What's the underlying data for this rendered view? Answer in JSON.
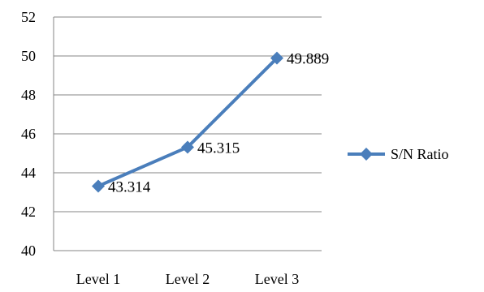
{
  "chart_data": {
    "type": "line",
    "title": "",
    "xlabel": "",
    "ylabel": "",
    "categories": [
      "Level 1",
      "Level 2",
      "Level 3"
    ],
    "series": [
      {
        "name": "S/N Ratio",
        "values": [
          43.314,
          45.315,
          49.889
        ],
        "data_labels": [
          "43.314",
          "45.315",
          "49.889"
        ]
      }
    ],
    "ylim": [
      40,
      52
    ],
    "yticks": [
      40,
      42,
      44,
      46,
      48,
      50,
      52
    ],
    "grid": true,
    "legend_position": "right",
    "marker": "diamond",
    "series_color": "#4a7ebb",
    "grid_color": "#868686"
  }
}
